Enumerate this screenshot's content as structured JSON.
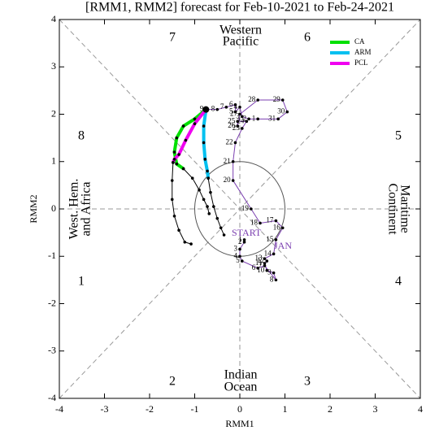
{
  "chart_data": {
    "type": "line",
    "title": "[RMM1, RMM2] forecast for Feb-10-2021 to Feb-24-2021",
    "x_label": "RMM1",
    "y_label": "RMM2",
    "xlim": [
      -4,
      4
    ],
    "ylim": [
      -4,
      4
    ],
    "xticks": [
      -4,
      -3,
      -2,
      -1,
      0,
      1,
      2,
      3,
      4
    ],
    "yticks": [
      -4,
      -3,
      -2,
      -1,
      0,
      1,
      2,
      3,
      4
    ],
    "phase_labels": [
      "1",
      "2",
      "3",
      "4",
      "5",
      "6",
      "7",
      "8"
    ],
    "region_labels": {
      "top": [
        "Western",
        "Pacific"
      ],
      "bottom": [
        "Indian",
        "Ocean"
      ],
      "left": [
        "West. Hem.",
        "and Africa"
      ],
      "right": [
        "Maritime",
        "Continent"
      ]
    },
    "annotations": [
      "START",
      "JAN"
    ],
    "series": [
      {
        "color": "#7b3fb0",
        "x": [
          0.1,
          0.1,
          0.0,
          0.0,
          0.05,
          0.4,
          0.55,
          0.8,
          0.75,
          0.6,
          0.55,
          0.6,
          0.55,
          0.75,
          0.8,
          0.95,
          0.8,
          0.45,
          0.25,
          -0.15,
          -0.15,
          -0.1,
          0.05,
          0.15,
          -0.05,
          -0.05,
          0.0,
          0.4,
          0.95,
          1.05,
          0.85,
          0.4,
          0.2,
          0.05,
          0.0,
          -0.1,
          -0.1,
          -0.3,
          -0.5,
          -0.75
        ],
        "values": [
          -0.65,
          -0.7,
          -0.85,
          -1.0,
          -1.1,
          -1.25,
          -1.2,
          -1.5,
          -1.35,
          -1.3,
          -1.15,
          -1.1,
          -1.05,
          -0.95,
          -0.65,
          -0.4,
          -0.25,
          -0.3,
          0.0,
          0.6,
          1.0,
          1.4,
          1.7,
          1.85,
          1.85,
          1.75,
          2.0,
          2.3,
          2.3,
          2.05,
          1.9,
          1.9,
          1.9,
          1.95,
          2.15,
          2.05,
          2.2,
          2.15,
          2.1,
          2.1
        ],
        "point_labels": [
          "1",
          "2",
          "3",
          "4",
          "5",
          "6",
          "7",
          "8",
          "9",
          "10",
          "11",
          "12",
          "13",
          "14",
          "15",
          "16",
          "17",
          "18",
          "19",
          "20",
          "21",
          "22",
          "23",
          "24",
          "25",
          "26",
          "27",
          "28",
          "29",
          "30",
          "31",
          "1",
          "2",
          "3",
          "4",
          "5",
          "6",
          "7",
          "8",
          "9"
        ]
      },
      {
        "name": "CA",
        "color": "#00e000",
        "x": [
          -0.75,
          -1.0,
          -1.25,
          -1.4,
          -1.45,
          -1.4,
          -1.25
        ],
        "values": [
          2.1,
          1.9,
          1.75,
          1.5,
          1.2,
          0.95,
          0.85
        ]
      },
      {
        "color": "#000000",
        "x": [
          -1.25,
          -1.05,
          -0.9,
          -0.8,
          -0.72,
          -0.68
        ],
        "values": [
          0.85,
          0.65,
          0.4,
          0.2,
          0.05,
          -0.1
        ]
      },
      {
        "name": "ARM",
        "color": "#00c0f0",
        "x": [
          -0.75,
          -0.8,
          -0.8,
          -0.77,
          -0.72,
          -0.7
        ],
        "values": [
          2.1,
          1.75,
          1.4,
          1.05,
          0.8,
          0.65
        ]
      },
      {
        "color": "#000000",
        "x": [
          -0.7,
          -0.65,
          -0.58,
          -0.5,
          -0.42,
          -0.35
        ],
        "values": [
          0.65,
          0.35,
          0.05,
          -0.2,
          -0.4,
          -0.55
        ]
      },
      {
        "name": "PCL",
        "color": "#f000f0",
        "x": [
          -0.75,
          -1.0,
          -1.2,
          -1.35,
          -1.45,
          -1.48
        ],
        "values": [
          2.1,
          1.8,
          1.45,
          1.15,
          1.05,
          0.98
        ]
      },
      {
        "color": "#000000",
        "x": [
          -1.48,
          -1.5,
          -1.5,
          -1.45,
          -1.35,
          -1.22,
          -1.08
        ],
        "values": [
          0.98,
          0.6,
          0.2,
          -0.15,
          -0.45,
          -0.7,
          -0.74
        ]
      }
    ]
  }
}
